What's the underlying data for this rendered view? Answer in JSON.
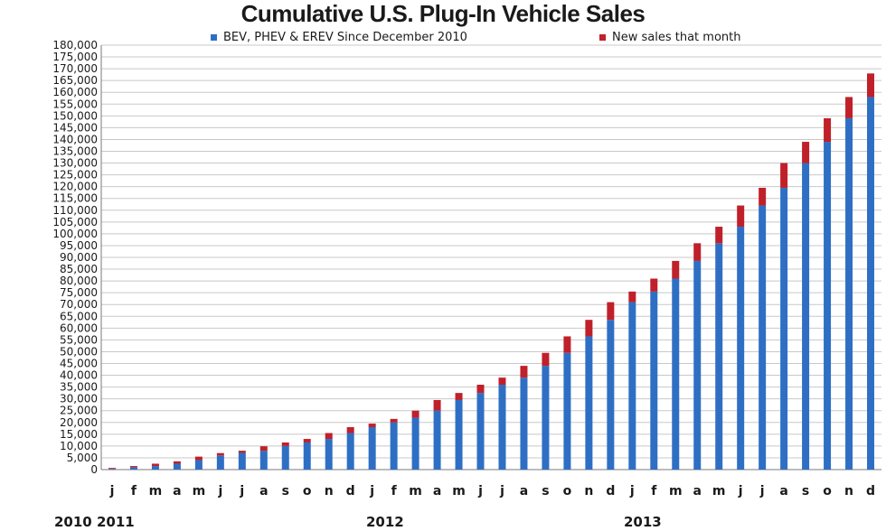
{
  "chart_data": {
    "type": "bar",
    "stacked": true,
    "title": "Cumulative U.S. Plug-In Vehicle Sales",
    "legend_position": "top",
    "grid": true,
    "ylim": [
      0,
      180000
    ],
    "ytick_step": 5000,
    "xlabel": "",
    "ylabel": "",
    "categories": [
      "j",
      "f",
      "m",
      "a",
      "m",
      "j",
      "j",
      "a",
      "s",
      "o",
      "n",
      "d",
      "j",
      "f",
      "m",
      "a",
      "m",
      "j",
      "j",
      "a",
      "s",
      "o",
      "n",
      "d",
      "j",
      "f",
      "m",
      "a",
      "m",
      "j",
      "j",
      "a",
      "s",
      "o",
      "n",
      "d"
    ],
    "year_labels": [
      "2010 2011",
      "2012",
      "2013"
    ],
    "series": [
      {
        "name": "BEV, PHEV & EREV Since December 2010",
        "color": "#2e6fc4",
        "values": [
          350,
          1000,
          1500,
          2500,
          4000,
          6000,
          7100,
          8000,
          10000,
          11500,
          13000,
          15500,
          18000,
          20000,
          22000,
          25000,
          29500,
          32500,
          36000,
          39000,
          44000,
          49500,
          56500,
          63500,
          71000,
          75500,
          81000,
          88500,
          96000,
          103000,
          112000,
          119500,
          130000,
          139000,
          149000,
          158000
        ]
      },
      {
        "name": "New sales that month",
        "color": "#c0202a",
        "values": [
          350,
          500,
          1000,
          1000,
          1500,
          1000,
          900,
          1900,
          1500,
          1500,
          2500,
          2500,
          1500,
          1500,
          3000,
          4500,
          3000,
          3500,
          3000,
          5000,
          5500,
          7000,
          7000,
          7500,
          4500,
          5500,
          7500,
          7500,
          7000,
          9000,
          7500,
          10500,
          9000,
          10000,
          9000,
          10000
        ]
      }
    ]
  }
}
